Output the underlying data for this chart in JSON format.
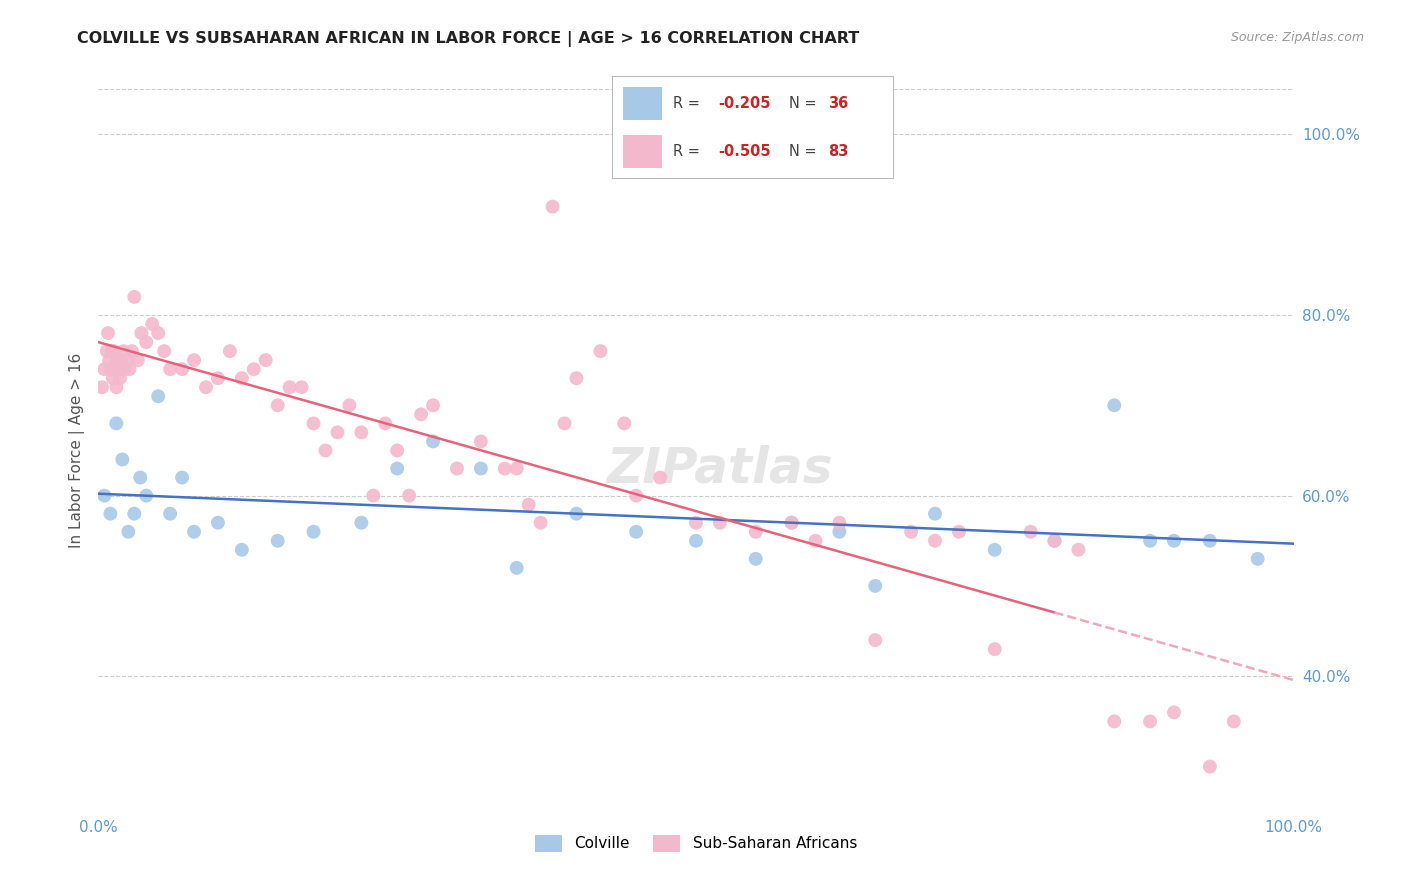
{
  "title": "COLVILLE VS SUBSAHARAN AFRICAN IN LABOR FORCE | AGE > 16 CORRELATION CHART",
  "source": "Source: ZipAtlas.com",
  "ylabel": "In Labor Force | Age > 16",
  "legend_blue_label": "Colville",
  "legend_pink_label": "Sub-Saharan Africans",
  "watermark": "ZIPatlas",
  "blue_color": "#a8c8e8",
  "pink_color": "#f4b8cc",
  "blue_line_color": "#4472c4",
  "pink_line_color": "#e8607a",
  "pink_dash_color": "#f0a8bc",
  "background_color": "#ffffff",
  "grid_color": "#cccccc",
  "xmin": 0,
  "xmax": 100,
  "ymin": 25,
  "ymax": 105,
  "yticks": [
    40,
    60,
    80,
    100
  ],
  "ytick_labels": [
    "40.0%",
    "60.0%",
    "80.0%",
    "100.0%"
  ],
  "blue_r": "-0.205",
  "blue_n": "36",
  "pink_r": "-0.505",
  "pink_n": "83",
  "blue_scatter_x": [
    0.5,
    1.0,
    1.5,
    2.0,
    2.5,
    3.0,
    3.5,
    4.0,
    5.0,
    6.0,
    7.0,
    8.0,
    10.0,
    12.0,
    15.0,
    18.0,
    22.0,
    25.0,
    28.0,
    32.0,
    35.0,
    40.0,
    45.0,
    50.0,
    55.0,
    58.0,
    62.0,
    65.0,
    70.0,
    75.0,
    80.0,
    85.0,
    88.0,
    90.0,
    93.0,
    97.0
  ],
  "blue_scatter_y": [
    60.0,
    58.0,
    68.0,
    64.0,
    56.0,
    58.0,
    62.0,
    60.0,
    71.0,
    58.0,
    62.0,
    56.0,
    57.0,
    54.0,
    55.0,
    56.0,
    57.0,
    63.0,
    66.0,
    63.0,
    52.0,
    58.0,
    56.0,
    55.0,
    53.0,
    57.0,
    56.0,
    50.0,
    58.0,
    54.0,
    55.0,
    70.0,
    55.0,
    55.0,
    55.0,
    53.0
  ],
  "pink_scatter_x": [
    0.3,
    0.5,
    0.7,
    0.8,
    0.9,
    1.0,
    1.1,
    1.2,
    1.3,
    1.4,
    1.5,
    1.6,
    1.7,
    1.8,
    1.9,
    2.0,
    2.1,
    2.2,
    2.4,
    2.6,
    2.8,
    3.0,
    3.3,
    3.6,
    4.0,
    4.5,
    5.0,
    5.5,
    6.0,
    7.0,
    8.0,
    9.0,
    10.0,
    11.0,
    12.0,
    13.0,
    14.0,
    15.0,
    16.0,
    17.0,
    18.0,
    19.0,
    20.0,
    21.0,
    22.0,
    23.0,
    24.0,
    25.0,
    26.0,
    27.0,
    28.0,
    30.0,
    32.0,
    34.0,
    35.0,
    36.0,
    37.0,
    38.0,
    39.0,
    40.0,
    42.0,
    44.0,
    45.0,
    47.0,
    50.0,
    52.0,
    55.0,
    58.0,
    60.0,
    62.0,
    65.0,
    68.0,
    70.0,
    72.0,
    75.0,
    78.0,
    80.0,
    82.0,
    85.0,
    88.0,
    90.0,
    93.0,
    95.0
  ],
  "pink_scatter_y": [
    72.0,
    74.0,
    76.0,
    78.0,
    75.0,
    74.0,
    76.0,
    73.0,
    76.0,
    74.0,
    72.0,
    75.0,
    74.0,
    73.0,
    75.0,
    74.0,
    76.0,
    74.0,
    75.0,
    74.0,
    76.0,
    82.0,
    75.0,
    78.0,
    77.0,
    79.0,
    78.0,
    76.0,
    74.0,
    74.0,
    75.0,
    72.0,
    73.0,
    76.0,
    73.0,
    74.0,
    75.0,
    70.0,
    72.0,
    72.0,
    68.0,
    65.0,
    67.0,
    70.0,
    67.0,
    60.0,
    68.0,
    65.0,
    60.0,
    69.0,
    70.0,
    63.0,
    66.0,
    63.0,
    63.0,
    59.0,
    57.0,
    92.0,
    68.0,
    73.0,
    76.0,
    68.0,
    60.0,
    62.0,
    57.0,
    57.0,
    56.0,
    57.0,
    55.0,
    57.0,
    44.0,
    56.0,
    55.0,
    56.0,
    43.0,
    56.0,
    55.0,
    54.0,
    35.0,
    35.0,
    36.0,
    30.0,
    35.0
  ]
}
